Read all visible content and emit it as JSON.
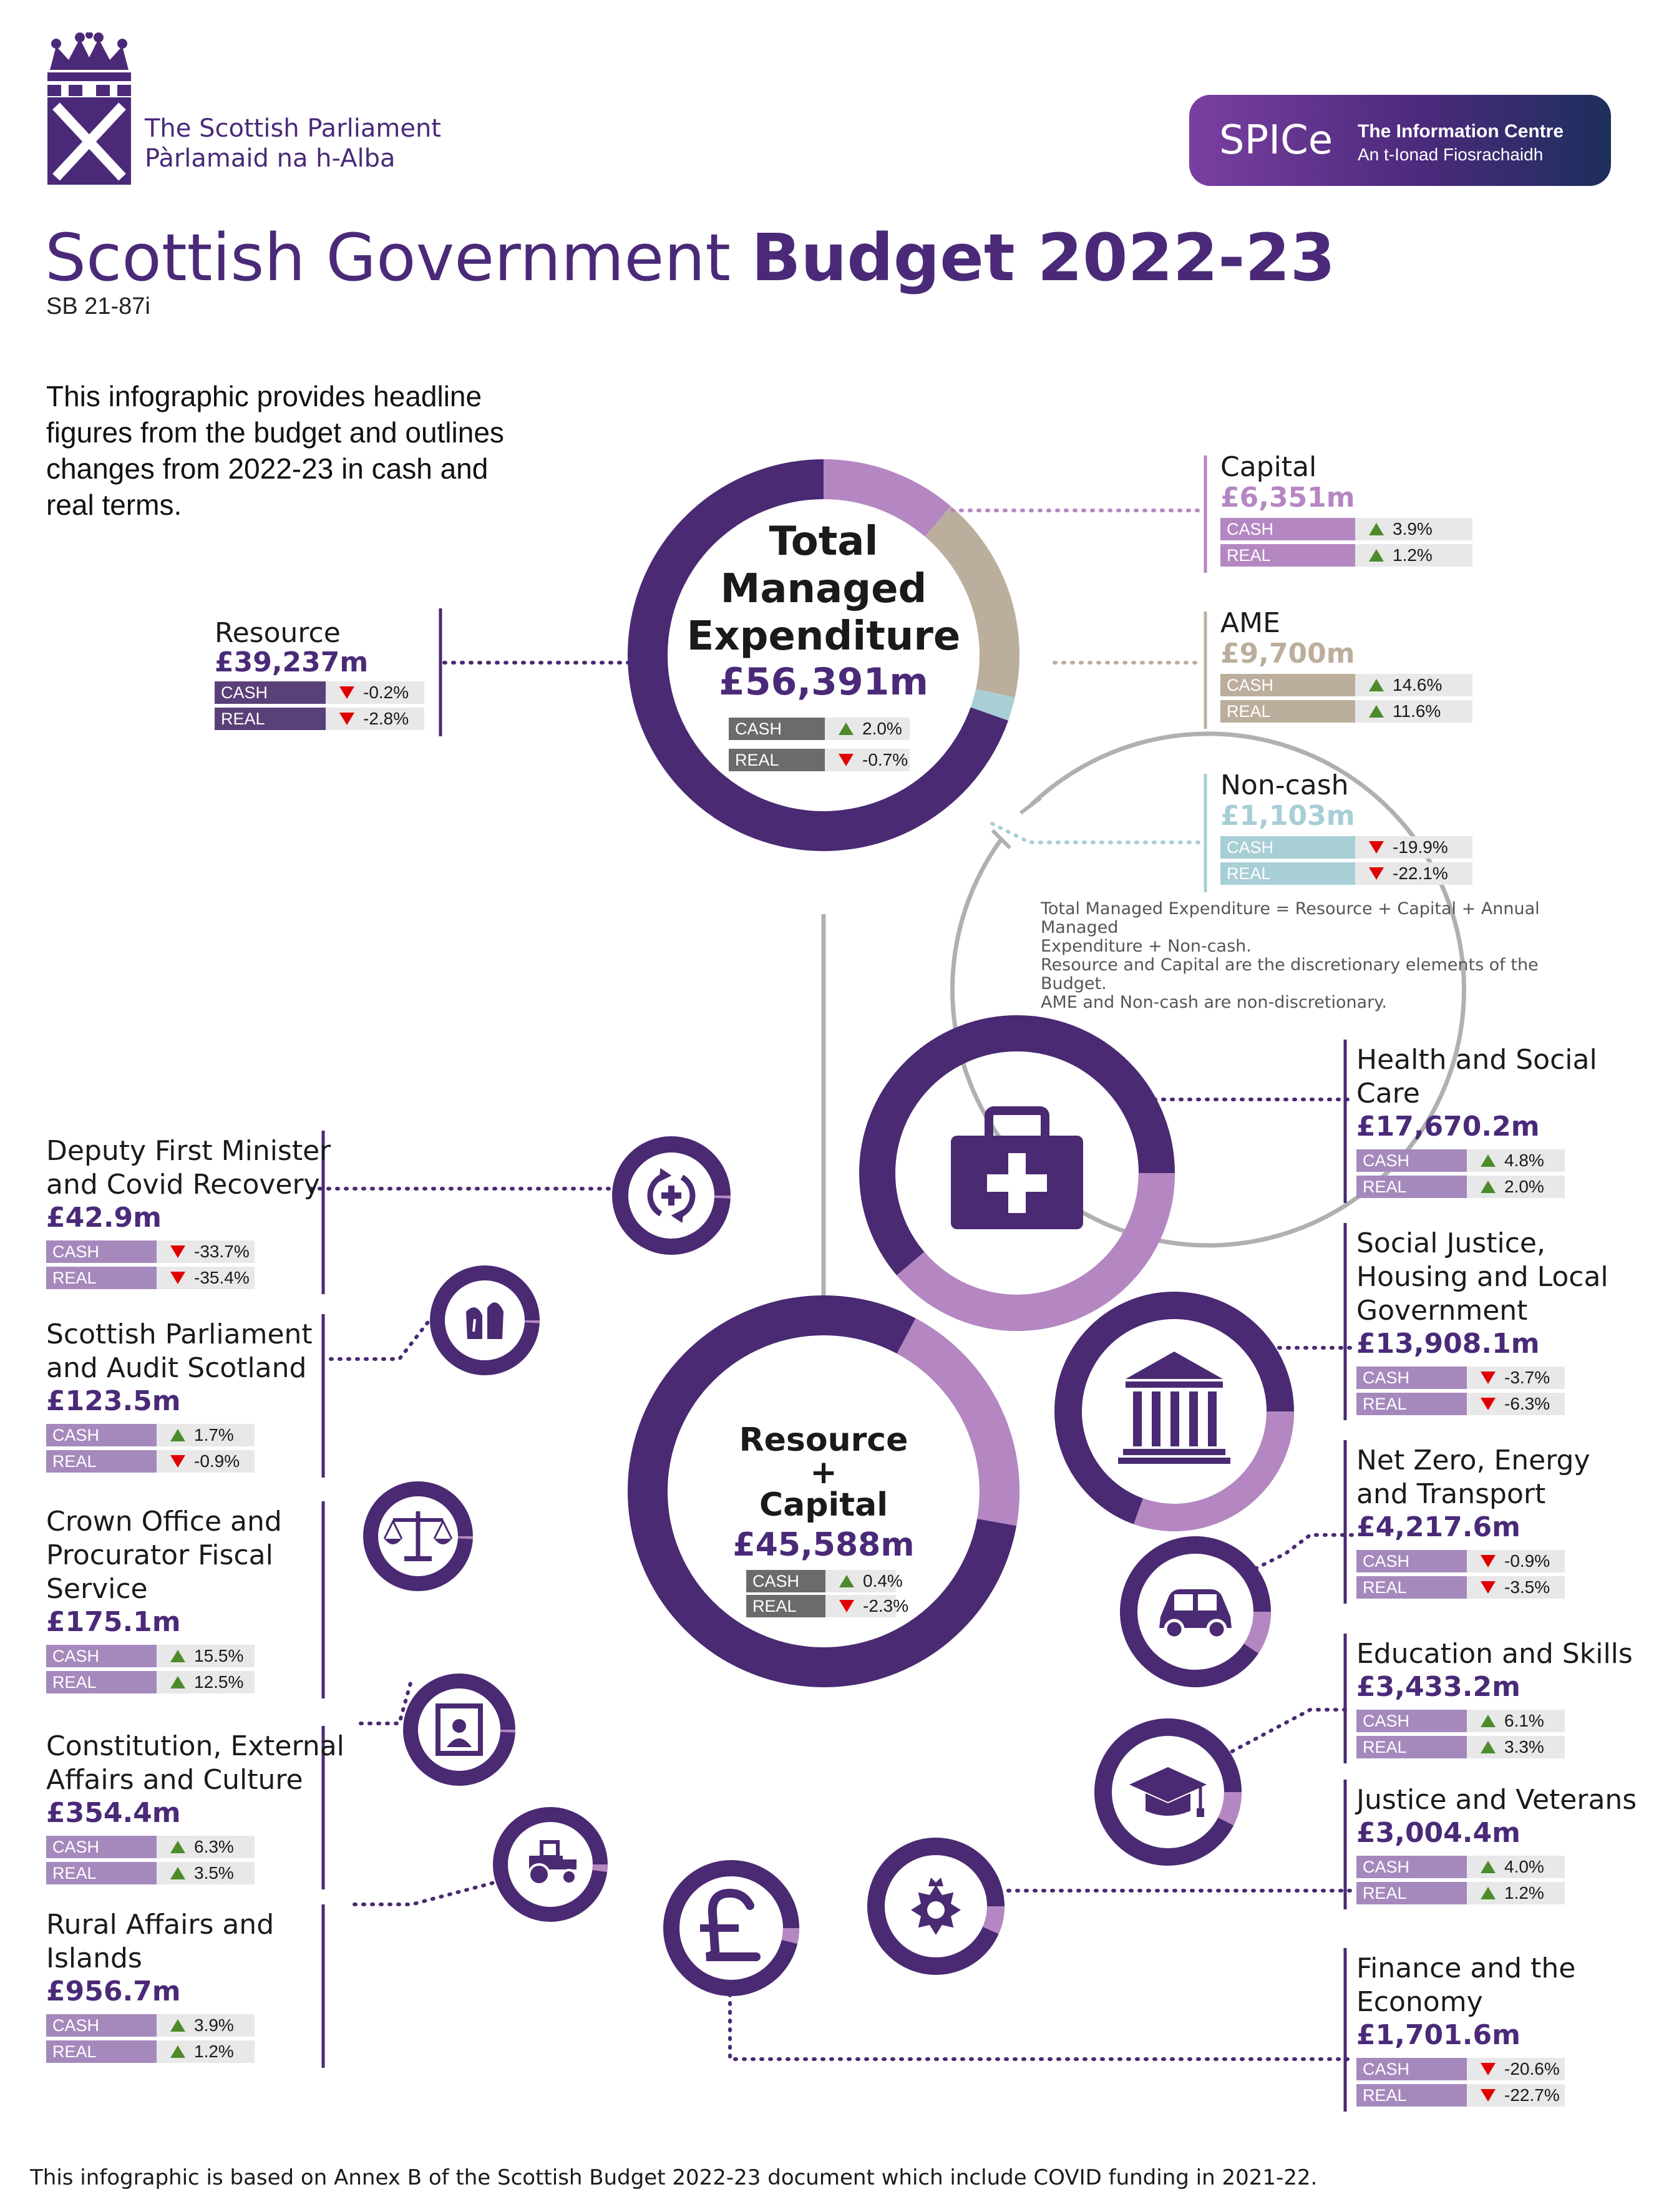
{
  "header": {
    "parliament_en": "The Scottish Parliament",
    "parliament_gd": "Pàrlamaid na h-Alba",
    "spice": {
      "short": "SPICe",
      "line1": "The Information Centre",
      "line2": "An t-Ionad Fiosrachaidh"
    },
    "title_light": "Scottish Government ",
    "title_bold": "Budget 2022-23",
    "code": "SB 21-87i",
    "intro": "This infographic provides headline figures from the budget and outlines changes from 2022-23 in cash and real terms."
  },
  "labels": {
    "cash": "CASH",
    "real": "REAL"
  },
  "colors": {
    "purple_dark": "#4a2a72",
    "purple_light": "#b587c2",
    "ame": "#bcae9c",
    "noncash": "#a8ced6",
    "badge_dark": "#5a4078",
    "badge_light": "#a589bc",
    "badge_gray": "#6b6b6b",
    "up": "#4e8a2a",
    "down": "#e00000"
  },
  "tme": {
    "title_lines": [
      "Total",
      "Managed",
      "Expenditure"
    ],
    "value": "£56,391m",
    "cash": {
      "dir": "up",
      "pct": "2.0%"
    },
    "real": {
      "dir": "down",
      "pct": "-0.7%"
    }
  },
  "tme_components": {
    "resource": {
      "name": "Resource",
      "value": "£39,237m",
      "cash": {
        "dir": "down",
        "pct": "-0.2%"
      },
      "real": {
        "dir": "down",
        "pct": "-2.8%"
      }
    },
    "capital": {
      "name": "Capital",
      "value": "£6,351m",
      "cash": {
        "dir": "up",
        "pct": "3.9%"
      },
      "real": {
        "dir": "up",
        "pct": "1.2%"
      }
    },
    "ame": {
      "name": "AME",
      "value": "£9,700m",
      "cash": {
        "dir": "up",
        "pct": "14.6%"
      },
      "real": {
        "dir": "up",
        "pct": "11.6%"
      }
    },
    "noncash": {
      "name": "Non-cash",
      "value": "£1,103m",
      "cash": {
        "dir": "down",
        "pct": "-19.9%"
      },
      "real": {
        "dir": "down",
        "pct": "-22.1%"
      }
    }
  },
  "note_lines": [
    "Total Managed Expenditure = Resource + Capital + Annual Managed",
    "Expenditure + Non-cash.",
    "Resource and Capital are the discretionary elements of the Budget.",
    "AME and Non-cash are non-discretionary."
  ],
  "rc": {
    "title_lines": [
      "Resource",
      "+",
      "Capital"
    ],
    "value": "£45,588m",
    "cash": {
      "dir": "up",
      "pct": "0.4%"
    },
    "real": {
      "dir": "down",
      "pct": "-2.3%"
    }
  },
  "portfolios": [
    {
      "id": "health",
      "name_lines": [
        "Health and Social",
        "Care"
      ],
      "value": "£17,670.2m",
      "share": 0.388,
      "icon": "medical-kit-icon",
      "cash": {
        "dir": "up",
        "pct": "4.8%"
      },
      "real": {
        "dir": "up",
        "pct": "2.0%"
      }
    },
    {
      "id": "social",
      "name_lines": [
        "Social Justice,",
        "Housing and Local",
        "Government"
      ],
      "value": "£13,908.1m",
      "share": 0.305,
      "icon": "government-building-icon",
      "cash": {
        "dir": "down",
        "pct": "-3.7%"
      },
      "real": {
        "dir": "down",
        "pct": "-6.3%"
      }
    },
    {
      "id": "netzero",
      "name_lines": [
        "Net Zero, Energy",
        "and Transport"
      ],
      "value": "£4,217.6m",
      "share": 0.093,
      "icon": "car-icon",
      "cash": {
        "dir": "down",
        "pct": "-0.9%"
      },
      "real": {
        "dir": "down",
        "pct": "-3.5%"
      }
    },
    {
      "id": "education",
      "name_lines": [
        "Education and Skills"
      ],
      "value": "£3,433.2m",
      "share": 0.075,
      "icon": "graduation-cap-icon",
      "cash": {
        "dir": "up",
        "pct": "6.1%"
      },
      "real": {
        "dir": "up",
        "pct": "3.3%"
      }
    },
    {
      "id": "justice",
      "name_lines": [
        "Justice and Veterans"
      ],
      "value": "£3,004.4m",
      "share": 0.066,
      "icon": "police-badge-icon",
      "cash": {
        "dir": "up",
        "pct": "4.0%"
      },
      "real": {
        "dir": "up",
        "pct": "1.2%"
      }
    },
    {
      "id": "finance",
      "name_lines": [
        "Finance and the",
        "Economy"
      ],
      "value": "£1,701.6m",
      "share": 0.037,
      "icon": "pound-icon",
      "cash": {
        "dir": "down",
        "pct": "-20.6%"
      },
      "real": {
        "dir": "down",
        "pct": "-22.7%"
      }
    },
    {
      "id": "dfm",
      "name_lines": [
        "Deputy First Minister",
        "and Covid Recovery"
      ],
      "value": "£42.9m",
      "share": 0.001,
      "icon": "recovery-cycle-icon",
      "cash": {
        "dir": "down",
        "pct": "-33.7%"
      },
      "real": {
        "dir": "down",
        "pct": "-35.4%"
      }
    },
    {
      "id": "parliament",
      "name_lines": [
        "Scottish Parliament",
        "and Audit Scotland"
      ],
      "value": "£123.5m",
      "share": 0.003,
      "icon": "parliament-emblem-icon",
      "cash": {
        "dir": "up",
        "pct": "1.7%"
      },
      "real": {
        "dir": "down",
        "pct": "-0.9%"
      }
    },
    {
      "id": "crown",
      "name_lines": [
        "Crown Office and",
        "Procurator Fiscal",
        "Service"
      ],
      "value": "£175.1m",
      "share": 0.004,
      "icon": "scales-icon",
      "cash": {
        "dir": "up",
        "pct": "15.5%"
      },
      "real": {
        "dir": "up",
        "pct": "12.5%"
      }
    },
    {
      "id": "constitution",
      "name_lines": [
        "Constitution, External",
        "Affairs and Culture"
      ],
      "value": "£354.4m",
      "share": 0.008,
      "icon": "portrait-frame-icon",
      "cash": {
        "dir": "up",
        "pct": "6.3%"
      },
      "real": {
        "dir": "up",
        "pct": "3.5%"
      }
    },
    {
      "id": "rural",
      "name_lines": [
        "Rural Affairs and",
        "Islands"
      ],
      "value": "£956.7m",
      "share": 0.021,
      "icon": "tractor-icon",
      "cash": {
        "dir": "up",
        "pct": "3.9%"
      },
      "real": {
        "dir": "up",
        "pct": "1.2%"
      }
    }
  ],
  "footer": "This infographic is based on Annex B of the Scottish Budget 2022-23 document which include COVID funding in 2021-22."
}
